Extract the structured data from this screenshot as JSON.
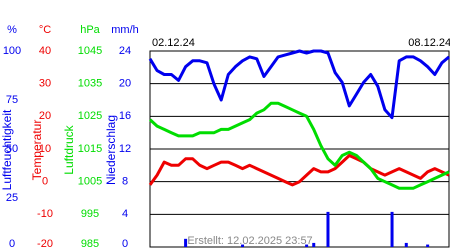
{
  "chart_data": {
    "type": "line",
    "categories": [
      "02.12.24",
      null,
      null,
      null,
      null,
      null,
      null,
      null,
      null,
      null,
      null,
      null,
      null,
      null,
      null,
      null,
      null,
      null,
      null,
      null,
      null,
      null,
      null,
      null,
      null,
      null,
      null,
      null,
      null,
      null,
      null,
      null,
      null,
      null,
      null,
      null,
      "08.12.24",
      null,
      null,
      null,
      null,
      null,
      null
    ],
    "grid": true,
    "footer": "Erstellt: 12.02.2025 23:57",
    "series": [
      {
        "name": "Luftfeuchtigkeit",
        "unit": "%",
        "type": "line",
        "color": "#0000ee",
        "ylim": [
          0,
          100
        ],
        "yticks": [
          0,
          25,
          50,
          75,
          100
        ],
        "values": [
          96,
          90,
          88,
          88,
          85,
          92,
          95,
          95,
          94,
          83,
          75,
          88,
          92,
          95,
          97,
          96,
          87,
          92,
          97,
          98,
          99,
          100,
          99,
          100,
          100,
          99,
          89,
          84,
          72,
          78,
          84,
          88,
          82,
          70,
          66,
          95,
          97,
          97,
          95,
          92,
          88,
          94,
          97
        ]
      },
      {
        "name": "Temperatur",
        "unit": "°C",
        "type": "line",
        "color": "#ee0000",
        "ylim": [
          -20,
          40
        ],
        "yticks": [
          -20,
          -10,
          0,
          10,
          20,
          30,
          40
        ],
        "values": [
          -1,
          2,
          6,
          5,
          5,
          7,
          7,
          5,
          4,
          5,
          6,
          6,
          5,
          4,
          5,
          4,
          3,
          2,
          1,
          0,
          -1,
          0,
          2,
          4,
          3,
          3,
          4,
          6,
          8,
          7,
          6,
          4,
          3,
          2,
          3,
          4,
          3,
          2,
          1,
          3,
          4,
          3,
          2
        ]
      },
      {
        "name": "Luftdruck",
        "unit": "hPa",
        "type": "line",
        "color": "#00dd00",
        "ylim": [
          985,
          1045
        ],
        "yticks": [
          985,
          995,
          1005,
          1015,
          1025,
          1035,
          1045
        ],
        "values": [
          1024,
          1022,
          1021,
          1020,
          1019,
          1019,
          1019,
          1020,
          1020,
          1020,
          1021,
          1021,
          1022,
          1023,
          1024,
          1026,
          1027,
          1029,
          1029,
          1028,
          1027,
          1026,
          1025,
          1021,
          1016,
          1012,
          1010,
          1013,
          1014,
          1013,
          1011,
          1009,
          1006,
          1005,
          1004,
          1003,
          1003,
          1003,
          1004,
          1005,
          1006,
          1007,
          1008
        ]
      },
      {
        "name": "Niederschlag",
        "unit": "mm/h",
        "type": "bar",
        "color": "#0000ee",
        "ylim": [
          0,
          24
        ],
        "yticks": [
          0,
          4,
          8,
          12,
          16,
          20,
          24
        ],
        "values": [
          0,
          0,
          0,
          0,
          0,
          1,
          0,
          0,
          0,
          0,
          0,
          0,
          0,
          0.3,
          0,
          0,
          0,
          0,
          0,
          0,
          0,
          0,
          0.3,
          0.5,
          0,
          4.3,
          0,
          0,
          0,
          0,
          0,
          0,
          0,
          0,
          4.3,
          0,
          0.5,
          0,
          0,
          0.3,
          0,
          0,
          0
        ]
      }
    ]
  }
}
